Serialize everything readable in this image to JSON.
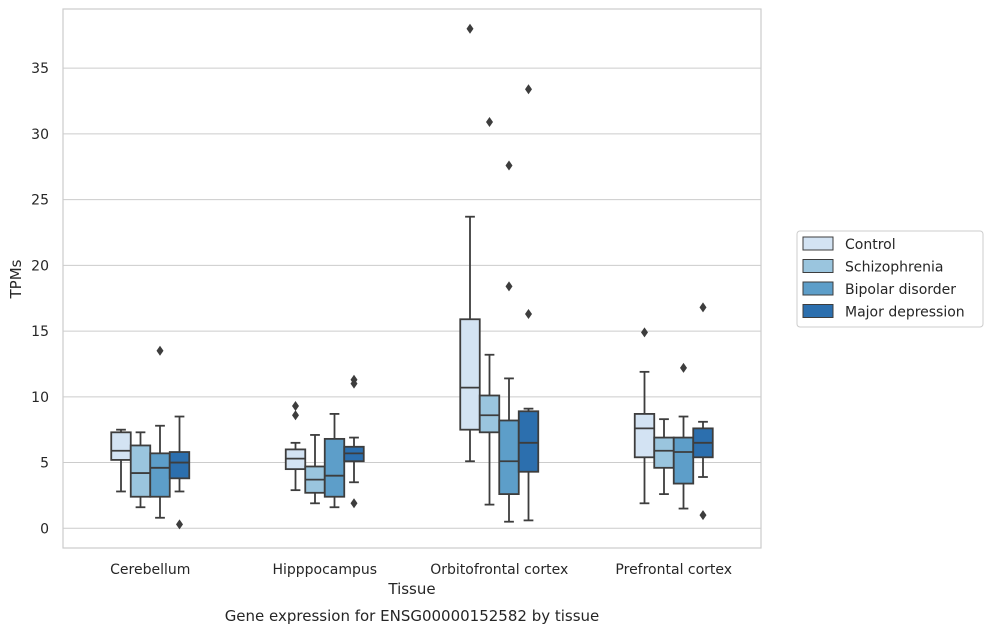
{
  "chart_data": {
    "type": "box",
    "xlabel": "Tissue",
    "ylabel": "TPMs",
    "caption": "Gene expression for ENSG00000152582 by tissue",
    "ylim": [
      -1.5,
      39.5
    ],
    "yticks": [
      0,
      5,
      10,
      15,
      20,
      25,
      30,
      35
    ],
    "grid": "horizontal",
    "legend_position": "right",
    "categories": [
      "Cerebellum",
      "Hipppocampus",
      "Orbitofrontal cortex",
      "Prefrontal cortex"
    ],
    "series": [
      {
        "name": "Control",
        "color": "#d3e3f3",
        "boxes": [
          {
            "whisker_low": 2.8,
            "q1": 5.2,
            "median": 5.9,
            "q3": 7.3,
            "whisker_high": 7.5,
            "outliers": []
          },
          {
            "whisker_low": 2.9,
            "q1": 4.5,
            "median": 5.3,
            "q3": 6.0,
            "whisker_high": 6.5,
            "outliers": [
              8.6,
              9.3
            ]
          },
          {
            "whisker_low": 5.1,
            "q1": 7.5,
            "median": 10.7,
            "q3": 15.9,
            "whisker_high": 23.7,
            "outliers": [
              38.0
            ]
          },
          {
            "whisker_low": 1.9,
            "q1": 5.4,
            "median": 7.6,
            "q3": 8.7,
            "whisker_high": 11.9,
            "outliers": [
              14.9
            ]
          }
        ]
      },
      {
        "name": "Schizophrenia",
        "color": "#9ac5de",
        "boxes": [
          {
            "whisker_low": 1.6,
            "q1": 2.4,
            "median": 4.2,
            "q3": 6.3,
            "whisker_high": 7.3,
            "outliers": []
          },
          {
            "whisker_low": 1.9,
            "q1": 2.7,
            "median": 3.7,
            "q3": 4.7,
            "whisker_high": 7.1,
            "outliers": []
          },
          {
            "whisker_low": 1.8,
            "q1": 7.3,
            "median": 8.6,
            "q3": 10.1,
            "whisker_high": 13.2,
            "outliers": [
              30.9
            ]
          },
          {
            "whisker_low": 2.6,
            "q1": 4.6,
            "median": 5.9,
            "q3": 6.9,
            "whisker_high": 8.3,
            "outliers": []
          }
        ]
      },
      {
        "name": "Bipolar disorder",
        "color": "#5d9ec9",
        "boxes": [
          {
            "whisker_low": 0.8,
            "q1": 2.4,
            "median": 4.6,
            "q3": 5.7,
            "whisker_high": 7.8,
            "outliers": [
              13.5
            ]
          },
          {
            "whisker_low": 1.6,
            "q1": 2.4,
            "median": 4.0,
            "q3": 6.8,
            "whisker_high": 8.7,
            "outliers": []
          },
          {
            "whisker_low": 0.5,
            "q1": 2.6,
            "median": 5.1,
            "q3": 8.2,
            "whisker_high": 11.4,
            "outliers": [
              18.4,
              27.6
            ]
          },
          {
            "whisker_low": 1.5,
            "q1": 3.4,
            "median": 5.8,
            "q3": 6.9,
            "whisker_high": 8.5,
            "outliers": [
              12.2
            ]
          }
        ]
      },
      {
        "name": "Major depression",
        "color": "#2c6fae",
        "boxes": [
          {
            "whisker_low": 2.8,
            "q1": 3.8,
            "median": 5.0,
            "q3": 5.8,
            "whisker_high": 8.5,
            "outliers": [
              0.3
            ]
          },
          {
            "whisker_low": 3.5,
            "q1": 5.1,
            "median": 5.7,
            "q3": 6.2,
            "whisker_high": 6.9,
            "outliers": [
              1.9,
              11.0,
              11.3
            ]
          },
          {
            "whisker_low": 0.6,
            "q1": 4.3,
            "median": 6.5,
            "q3": 8.9,
            "whisker_high": 9.1,
            "outliers": [
              16.3,
              33.4
            ]
          },
          {
            "whisker_low": 3.9,
            "q1": 5.4,
            "median": 6.5,
            "q3": 7.6,
            "whisker_high": 8.1,
            "outliers": [
              1.0,
              16.8
            ]
          }
        ]
      }
    ]
  }
}
